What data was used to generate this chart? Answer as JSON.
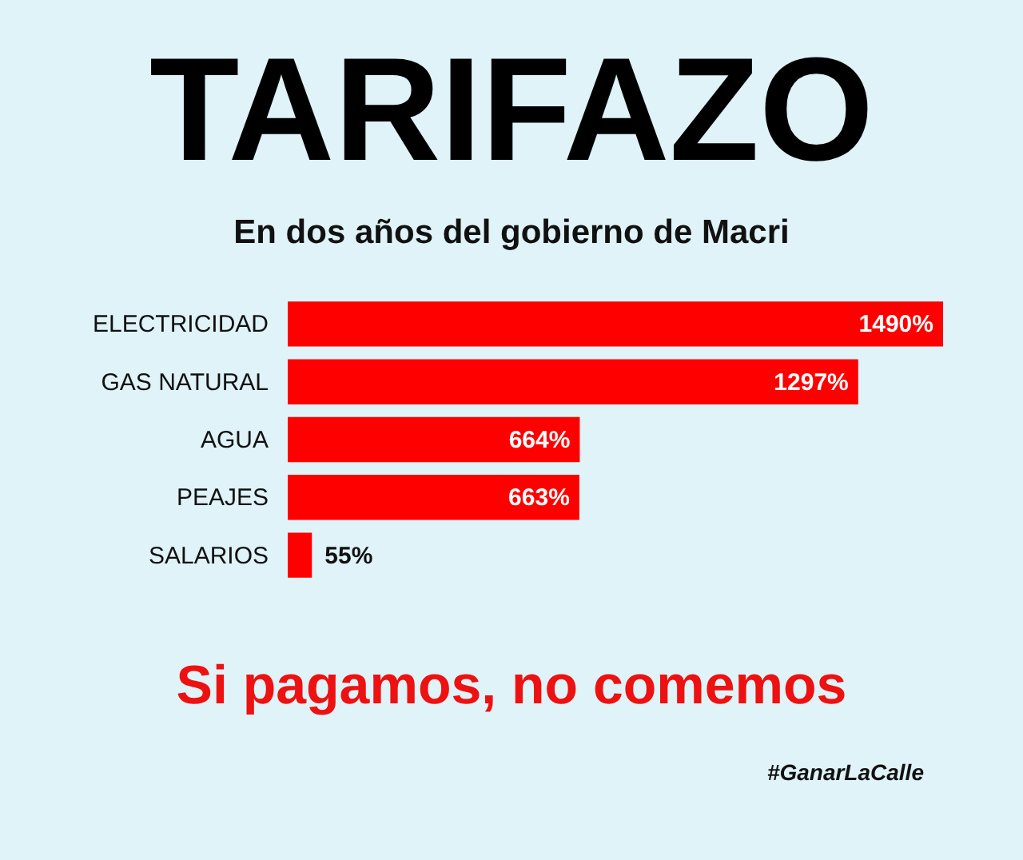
{
  "chart_data": {
    "type": "bar",
    "orientation": "horizontal",
    "title": "TARIFAZO",
    "subtitle": "En dos años del gobierno de Macri",
    "categories": [
      "ELECTRICIDAD",
      "GAS NATURAL",
      "AGUA",
      "PEAJES",
      "SALARIOS"
    ],
    "values": [
      1490,
      1297,
      664,
      663,
      55
    ],
    "value_labels": [
      "1490%",
      "1297%",
      "664%",
      "663%",
      "55%"
    ],
    "color": "#fe0000",
    "annotations": [
      "Si pagamos, no comemos",
      "#GanarLaCalle"
    ]
  }
}
